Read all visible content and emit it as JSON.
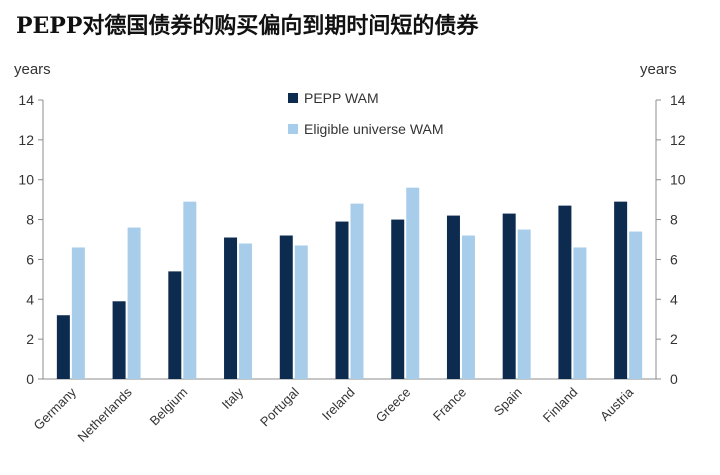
{
  "title": "PEPP对德国债券的购买偏向到期时间短的债券",
  "chart_data": {
    "type": "bar",
    "categories": [
      "Germany",
      "Netherlands",
      "Belgium",
      "Italy",
      "Portugal",
      "Ireland",
      "Greece",
      "France",
      "Spain",
      "Finland",
      "Austria"
    ],
    "series": [
      {
        "name": "PEPP WAM",
        "color": "#0d2a4f",
        "values": [
          3.2,
          3.9,
          5.4,
          7.1,
          7.2,
          7.9,
          8.0,
          8.2,
          8.3,
          8.7,
          8.9
        ]
      },
      {
        "name": "Eligible universe WAM",
        "color": "#a8cdea",
        "values": [
          6.6,
          7.6,
          8.9,
          6.8,
          6.7,
          8.8,
          9.6,
          7.2,
          7.5,
          6.6,
          7.4
        ]
      }
    ],
    "ylabel_left": "years",
    "ylabel_right": "years",
    "ylim": [
      0,
      14
    ],
    "yticks": [
      0,
      2,
      4,
      6,
      8,
      10,
      12,
      14
    ],
    "grid": false,
    "legend_position": "top-center"
  }
}
